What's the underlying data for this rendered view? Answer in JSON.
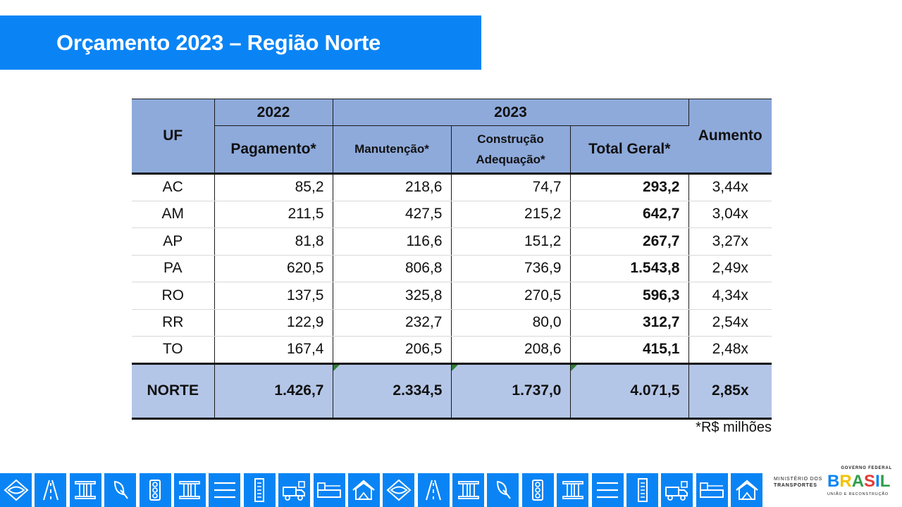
{
  "title": "Orçamento 2023 – Região Norte",
  "table": {
    "header": {
      "uf": "UF",
      "year_2022": "2022",
      "year_2023": "2023",
      "payment": "Pagamento*",
      "maintenance": "Manutenção*",
      "construction_line1": "Construção",
      "construction_line2": "Adequação*",
      "total": "Total Geral*",
      "increase": "Aumento"
    },
    "rows": [
      {
        "uf": "AC",
        "payment": "85,2",
        "maintenance": "218,6",
        "construction": "74,7",
        "total": "293,2",
        "increase": "3,44x"
      },
      {
        "uf": "AM",
        "payment": "211,5",
        "maintenance": "427,5",
        "construction": "215,2",
        "total": "642,7",
        "increase": "3,04x"
      },
      {
        "uf": "AP",
        "payment": "81,8",
        "maintenance": "116,6",
        "construction": "151,2",
        "total": "267,7",
        "increase": "3,27x"
      },
      {
        "uf": "PA",
        "payment": "620,5",
        "maintenance": "806,8",
        "construction": "736,9",
        "total": "1.543,8",
        "increase": "2,49x"
      },
      {
        "uf": "RO",
        "payment": "137,5",
        "maintenance": "325,8",
        "construction": "270,5",
        "total": "596,3",
        "increase": "4,34x"
      },
      {
        "uf": "RR",
        "payment": "122,9",
        "maintenance": "232,7",
        "construction": "80,0",
        "total": "312,7",
        "increase": "2,54x"
      },
      {
        "uf": "TO",
        "payment": "167,4",
        "maintenance": "206,5",
        "construction": "208,6",
        "total": "415,1",
        "increase": "2,48x"
      }
    ],
    "total_row": {
      "uf": "NORTE",
      "payment": "1.426,7",
      "maintenance": "2.334,5",
      "construction": "1.737,0",
      "total": "4.071,5",
      "increase": "2,85x"
    }
  },
  "footnote": "*R$ milhões",
  "colors": {
    "brand_blue": "#0a84f5",
    "header_fill": "#8eaadb",
    "total_fill": "#b4c6e7"
  },
  "icon_strip": [
    "eye-diamond-icon",
    "road-icon",
    "bridge-icon",
    "leaf-icon",
    "traffic-light-icon",
    "bridge-icon",
    "lines-icon",
    "railway-icon",
    "truck-icon",
    "container-icon",
    "house-icon",
    "eye-diamond-icon",
    "road-icon",
    "bridge-icon",
    "leaf-icon",
    "traffic-light-icon",
    "bridge-icon",
    "lines-icon",
    "railway-icon",
    "truck-icon",
    "container-icon",
    "house-icon"
  ],
  "ministry_logo": {
    "line1": "MINISTÉRIO DOS",
    "line2": "TRANSPORTES"
  },
  "gov_logo": {
    "top": "GOVERNO FEDERAL",
    "letters": [
      "B",
      "R",
      "A",
      "S",
      "I",
      "L"
    ],
    "bottom": "UNIÃO E RECONSTRUÇÃO"
  }
}
